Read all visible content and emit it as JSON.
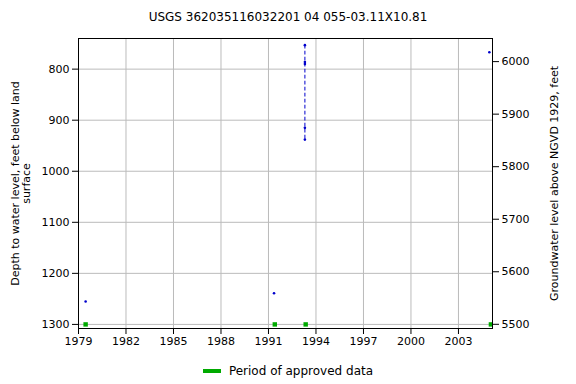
{
  "chart_data": {
    "type": "scatter",
    "title": "USGS 362035116032201 04 055-03.11X10.81",
    "y_label": "Depth to water level, feet below land\nsurface",
    "y2_label": "Groundwater level above NGVD 1929, feet",
    "xlim": [
      1979,
      2005.15
    ],
    "xticks": [
      1979,
      1982,
      1985,
      1988,
      1991,
      1994,
      1997,
      2000,
      2003
    ],
    "ylim": [
      740,
      1308
    ],
    "yticks": [
      800,
      900,
      1000,
      1100,
      1200,
      1300
    ],
    "y2lim": [
      5492,
      6044
    ],
    "y2ticks": [
      5500,
      5600,
      5700,
      5800,
      5900,
      6000
    ],
    "grid": true,
    "legend": "bottom",
    "series": [
      {
        "type": "scatter",
        "marker": "dot",
        "color": "#0000cc",
        "x": [
          1979.45,
          1991.35,
          1993.3,
          1993.3,
          1993.3,
          1993.3,
          1993.3,
          2004.95
        ],
        "values": [
          1255,
          1239,
          753,
          786,
          790,
          915,
          938,
          767
        ]
      },
      {
        "type": "line",
        "line_style": "dashed",
        "color": "#0000cc",
        "x": [
          1993.3,
          1993.3,
          1993.3,
          1993.3,
          1993.3
        ],
        "values": [
          753,
          786,
          790,
          915,
          938
        ]
      },
      {
        "name": "Period of approved data",
        "type": "scatter",
        "marker": "square",
        "color": "#00aa00",
        "x": [
          1979.45,
          1991.4,
          1993.35,
          2005.05
        ],
        "values": [
          1300,
          1300,
          1300,
          1300
        ]
      }
    ]
  }
}
